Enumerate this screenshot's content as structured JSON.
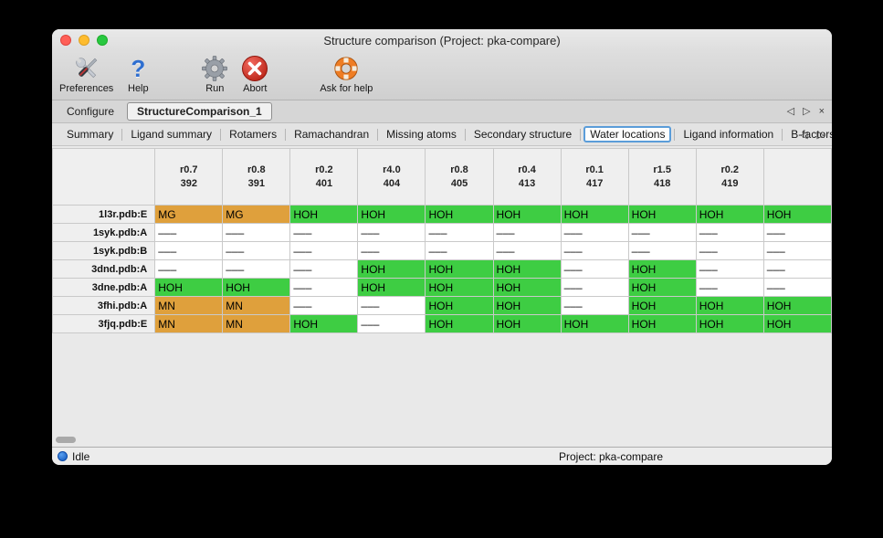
{
  "window": {
    "title": "Structure comparison (Project: pka-compare)"
  },
  "toolbar": {
    "items": [
      {
        "label": "Preferences",
        "icon": "preferences-tools-icon"
      },
      {
        "label": "Help",
        "icon": "help-question-icon"
      },
      {
        "label": "Run",
        "icon": "run-gear-icon"
      },
      {
        "label": "Abort",
        "icon": "abort-stop-icon"
      },
      {
        "label": "Ask for help",
        "icon": "ask-for-help-lifebuoy-icon"
      }
    ]
  },
  "tab_bar": {
    "tabs": [
      {
        "label": "Configure",
        "active": false
      },
      {
        "label": "StructureComparison_1",
        "active": true
      }
    ],
    "controls": {
      "prev": "◁",
      "next": "▷",
      "close": "×"
    }
  },
  "subtab_bar": {
    "tabs": [
      {
        "label": "Summary",
        "selected": false
      },
      {
        "label": "Ligand summary",
        "selected": false
      },
      {
        "label": "Rotamers",
        "selected": false
      },
      {
        "label": "Ramachandran",
        "selected": false
      },
      {
        "label": "Missing atoms",
        "selected": false
      },
      {
        "label": "Secondary structure",
        "selected": false
      },
      {
        "label": "Water locations",
        "selected": true
      },
      {
        "label": "Ligand information",
        "selected": false
      },
      {
        "label": "B-factors",
        "selected": false
      }
    ],
    "controls": {
      "prev": "◁",
      "next": "▷"
    }
  },
  "table": {
    "legend_colors": {
      "water": "#3ecd43",
      "metal": "#dfa03c",
      "none": "#ffffff"
    },
    "columns": [
      {
        "radius": "r0.7",
        "number": "392"
      },
      {
        "radius": "r0.8",
        "number": "391"
      },
      {
        "radius": "r0.2",
        "number": "401"
      },
      {
        "radius": "r4.0",
        "number": "404"
      },
      {
        "radius": "r0.8",
        "number": "405"
      },
      {
        "radius": "r0.4",
        "number": "413"
      },
      {
        "radius": "r0.1",
        "number": "417"
      },
      {
        "radius": "r1.5",
        "number": "418"
      },
      {
        "radius": "r0.2",
        "number": "419"
      },
      {
        "radius": "",
        "number": ""
      }
    ],
    "rows": [
      {
        "label": "1l3r.pdb:E",
        "cells": [
          {
            "text": "MG",
            "type": "metal"
          },
          {
            "text": "MG",
            "type": "metal"
          },
          {
            "text": "HOH",
            "type": "water"
          },
          {
            "text": "HOH",
            "type": "water"
          },
          {
            "text": "HOH",
            "type": "water"
          },
          {
            "text": "HOH",
            "type": "water"
          },
          {
            "text": "HOH",
            "type": "water"
          },
          {
            "text": "HOH",
            "type": "water"
          },
          {
            "text": "HOH",
            "type": "water"
          },
          {
            "text": "HOH",
            "type": "water"
          }
        ]
      },
      {
        "label": "1syk.pdb:A",
        "cells": [
          {
            "text": "–––",
            "type": "none"
          },
          {
            "text": "–––",
            "type": "none"
          },
          {
            "text": "–––",
            "type": "none"
          },
          {
            "text": "–––",
            "type": "none"
          },
          {
            "text": "–––",
            "type": "none"
          },
          {
            "text": "–––",
            "type": "none"
          },
          {
            "text": "–––",
            "type": "none"
          },
          {
            "text": "–––",
            "type": "none"
          },
          {
            "text": "–––",
            "type": "none"
          },
          {
            "text": "–––",
            "type": "none"
          }
        ]
      },
      {
        "label": "1syk.pdb:B",
        "cells": [
          {
            "text": "–––",
            "type": "none"
          },
          {
            "text": "–––",
            "type": "none"
          },
          {
            "text": "–––",
            "type": "none"
          },
          {
            "text": "–––",
            "type": "none"
          },
          {
            "text": "–––",
            "type": "none"
          },
          {
            "text": "–––",
            "type": "none"
          },
          {
            "text": "–––",
            "type": "none"
          },
          {
            "text": "–––",
            "type": "none"
          },
          {
            "text": "–––",
            "type": "none"
          },
          {
            "text": "–––",
            "type": "none"
          }
        ]
      },
      {
        "label": "3dnd.pdb:A",
        "cells": [
          {
            "text": "–––",
            "type": "none"
          },
          {
            "text": "–––",
            "type": "none"
          },
          {
            "text": "–––",
            "type": "none"
          },
          {
            "text": "HOH",
            "type": "water"
          },
          {
            "text": "HOH",
            "type": "water"
          },
          {
            "text": "HOH",
            "type": "water"
          },
          {
            "text": "–––",
            "type": "none"
          },
          {
            "text": "HOH",
            "type": "water"
          },
          {
            "text": "–––",
            "type": "none"
          },
          {
            "text": "–––",
            "type": "none"
          }
        ]
      },
      {
        "label": "3dne.pdb:A",
        "cells": [
          {
            "text": "HOH",
            "type": "water"
          },
          {
            "text": "HOH",
            "type": "water"
          },
          {
            "text": "–––",
            "type": "none"
          },
          {
            "text": "HOH",
            "type": "water"
          },
          {
            "text": "HOH",
            "type": "water"
          },
          {
            "text": "HOH",
            "type": "water"
          },
          {
            "text": "–––",
            "type": "none"
          },
          {
            "text": "HOH",
            "type": "water"
          },
          {
            "text": "–––",
            "type": "none"
          },
          {
            "text": "–––",
            "type": "none"
          }
        ]
      },
      {
        "label": "3fhi.pdb:A",
        "cells": [
          {
            "text": "MN",
            "type": "metal"
          },
          {
            "text": "MN",
            "type": "metal"
          },
          {
            "text": "–––",
            "type": "none"
          },
          {
            "text": "–––",
            "type": "none"
          },
          {
            "text": "HOH",
            "type": "water"
          },
          {
            "text": "HOH",
            "type": "water"
          },
          {
            "text": "–––",
            "type": "none"
          },
          {
            "text": "HOH",
            "type": "water"
          },
          {
            "text": "HOH",
            "type": "water"
          },
          {
            "text": "HOH",
            "type": "water"
          }
        ]
      },
      {
        "label": "3fjq.pdb:E",
        "cells": [
          {
            "text": "MN",
            "type": "metal"
          },
          {
            "text": "MN",
            "type": "metal"
          },
          {
            "text": "HOH",
            "type": "water"
          },
          {
            "text": "–––",
            "type": "none"
          },
          {
            "text": "HOH",
            "type": "water"
          },
          {
            "text": "HOH",
            "type": "water"
          },
          {
            "text": "HOH",
            "type": "water"
          },
          {
            "text": "HOH",
            "type": "water"
          },
          {
            "text": "HOH",
            "type": "water"
          },
          {
            "text": "HOH",
            "type": "water"
          }
        ]
      }
    ]
  },
  "status_bar": {
    "status": "Idle",
    "project": "Project: pka-compare"
  }
}
